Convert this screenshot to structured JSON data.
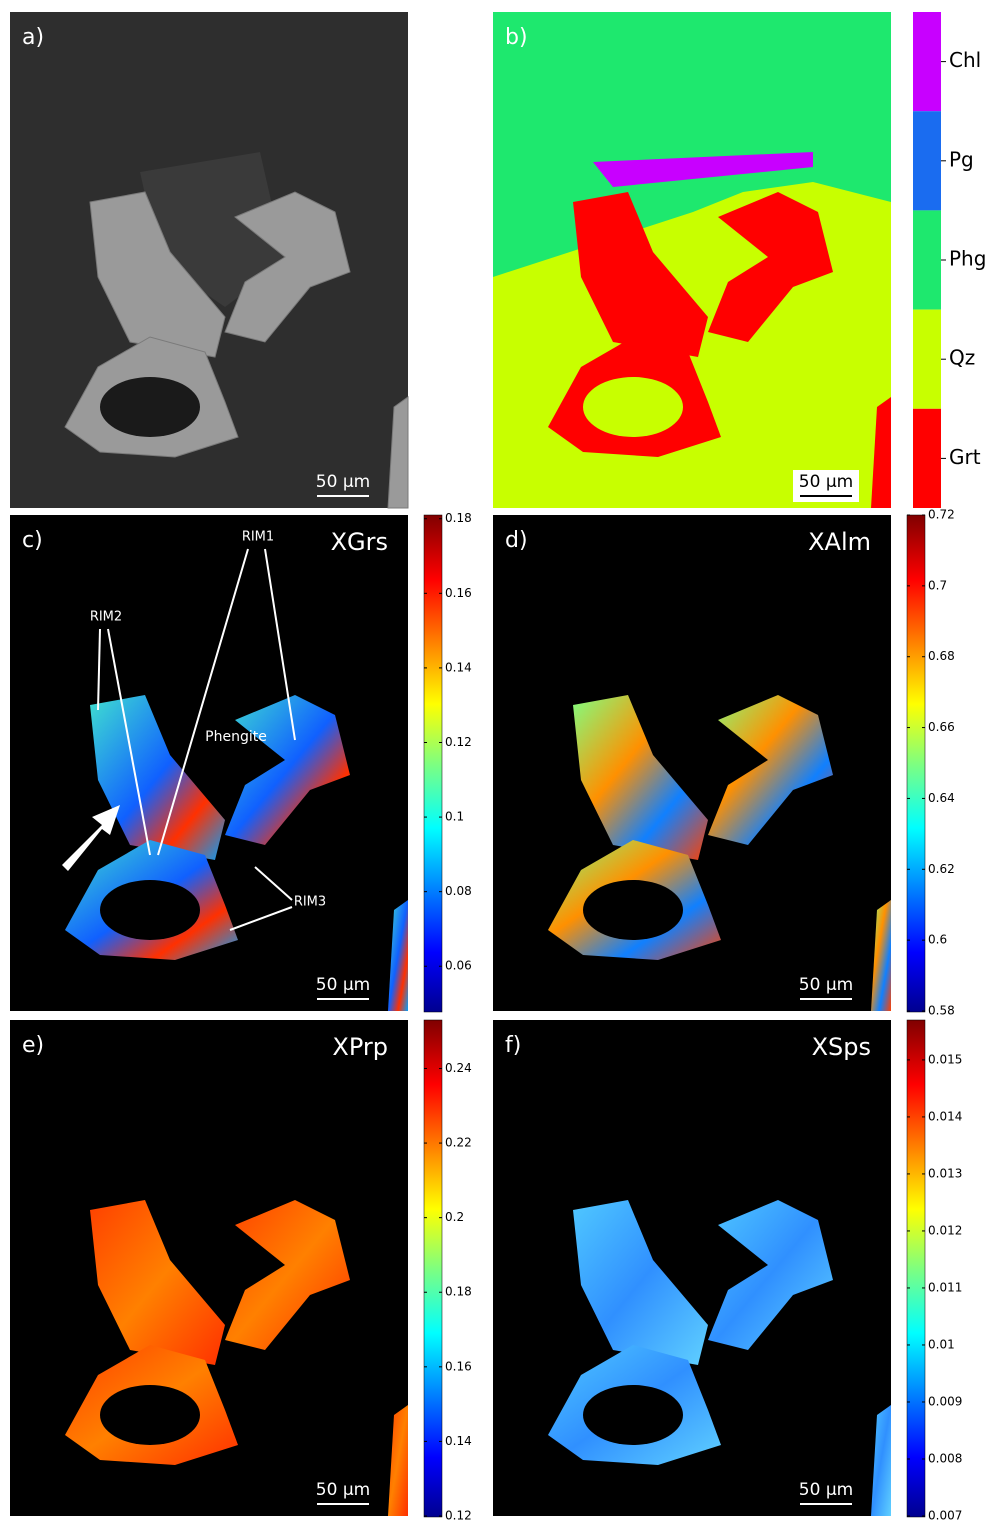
{
  "panels": [
    {
      "label": "a)",
      "scale_bar": "50 µm"
    },
    {
      "label": "b)",
      "scale_bar": "50 µm",
      "legend": [
        {
          "name": "Chl",
          "color": "#c800ff"
        },
        {
          "name": "Pg",
          "color": "#1a6cf0"
        },
        {
          "name": "Phg",
          "color": "#1ee86e"
        },
        {
          "name": "Qz",
          "color": "#c8ff00"
        },
        {
          "name": "Grt",
          "color": "#ff0000"
        }
      ]
    },
    {
      "label": "c)",
      "title": "XGrs",
      "scale_bar": "50 µm",
      "annotations": [
        "RIM1",
        "RIM2",
        "Phengite",
        "RIM3"
      ],
      "colorbar": {
        "lim": [
          0.048,
          0.181
        ],
        "ticks": [
          0.06,
          0.08,
          0.1,
          0.12,
          0.14,
          0.16,
          0.18
        ]
      }
    },
    {
      "label": "d)",
      "title": "XAlm",
      "scale_bar": "50 µm",
      "colorbar": {
        "lim": [
          0.58,
          0.72
        ],
        "ticks": [
          0.58,
          0.6,
          0.62,
          0.64,
          0.66,
          0.68,
          0.7,
          0.72
        ]
      }
    },
    {
      "label": "e)",
      "title": "XPrp",
      "scale_bar": "50 µm",
      "colorbar": {
        "lim": [
          0.12,
          0.253
        ],
        "ticks": [
          0.12,
          0.14,
          0.16,
          0.18,
          0.2,
          0.22,
          0.24
        ]
      }
    },
    {
      "label": "f)",
      "title": "XSps",
      "scale_bar": "50 µm",
      "colorbar": {
        "lim": [
          0.007,
          0.0157
        ],
        "ticks": [
          0.007,
          0.008,
          0.009,
          0.01,
          0.011,
          0.012,
          0.013,
          0.014,
          0.015
        ]
      }
    }
  ]
}
